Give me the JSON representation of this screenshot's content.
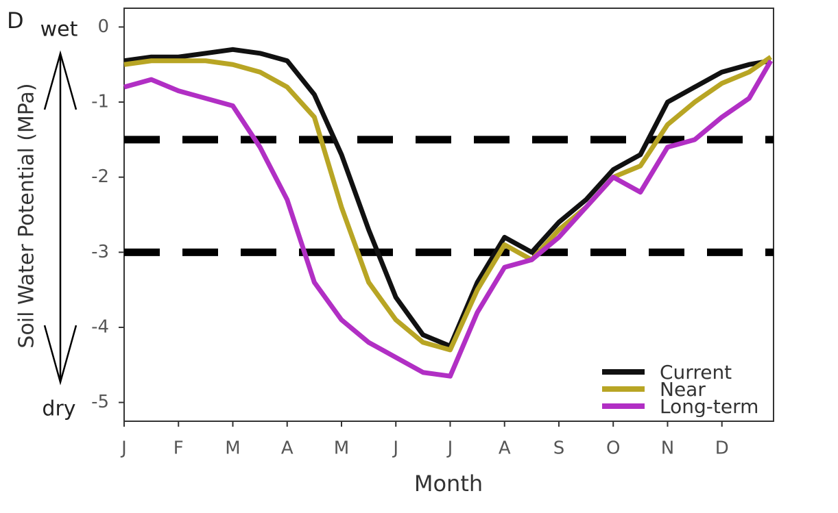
{
  "chart_data": {
    "type": "line",
    "panel_label": "D",
    "y_top_label": "wet",
    "y_bottom_label": "dry",
    "xlabel": "Month",
    "ylabel": "Soil Water Potential (MPa)",
    "xlim": [
      0,
      11.95
    ],
    "ylim": [
      -5.25,
      0.25
    ],
    "xticks": [
      {
        "value": 0,
        "label": "J"
      },
      {
        "value": 1,
        "label": "F"
      },
      {
        "value": 2,
        "label": "M"
      },
      {
        "value": 3,
        "label": "A"
      },
      {
        "value": 4,
        "label": "M"
      },
      {
        "value": 5,
        "label": "J"
      },
      {
        "value": 6,
        "label": "J"
      },
      {
        "value": 7,
        "label": "A"
      },
      {
        "value": 8,
        "label": "S"
      },
      {
        "value": 9,
        "label": "O"
      },
      {
        "value": 10,
        "label": "N"
      },
      {
        "value": 11,
        "label": "D"
      }
    ],
    "yticks": [
      0,
      -1,
      -2,
      -3,
      -4,
      -5
    ],
    "reference_lines": [
      -1.5,
      -3
    ],
    "legend": "lower right",
    "x": [
      0,
      0.5,
      1,
      1.5,
      2,
      2.5,
      3,
      3.5,
      4,
      4.5,
      5,
      5.5,
      6,
      6.5,
      7,
      7.5,
      8,
      8.5,
      9,
      9.5,
      10,
      10.5,
      11,
      11.5,
      11.9
    ],
    "series": [
      {
        "name": "Current",
        "color": "#111111",
        "values": [
          -0.45,
          -0.4,
          -0.4,
          -0.35,
          -0.3,
          -0.35,
          -0.45,
          -0.9,
          -1.7,
          -2.7,
          -3.6,
          -4.1,
          -4.25,
          -3.4,
          -2.8,
          -3.0,
          -2.6,
          -2.3,
          -1.9,
          -1.7,
          -1.0,
          -0.8,
          -0.6,
          -0.5,
          -0.45
        ]
      },
      {
        "name": "Near",
        "color": "#b8a524",
        "values": [
          -0.5,
          -0.45,
          -0.45,
          -0.45,
          -0.5,
          -0.6,
          -0.8,
          -1.2,
          -2.4,
          -3.4,
          -3.9,
          -4.2,
          -4.3,
          -3.5,
          -2.9,
          -3.1,
          -2.7,
          -2.4,
          -2.0,
          -1.85,
          -1.3,
          -1.0,
          -0.75,
          -0.6,
          -0.4
        ]
      },
      {
        "name": "Long-term",
        "color": "#b12fc4",
        "values": [
          -0.8,
          -0.7,
          -0.85,
          -0.95,
          -1.05,
          -1.6,
          -2.3,
          -3.4,
          -3.9,
          -4.2,
          -4.4,
          -4.6,
          -4.65,
          -3.8,
          -3.2,
          -3.1,
          -2.8,
          -2.4,
          -2.0,
          -2.2,
          -1.6,
          -1.5,
          -1.2,
          -0.95,
          -0.45
        ]
      }
    ]
  }
}
